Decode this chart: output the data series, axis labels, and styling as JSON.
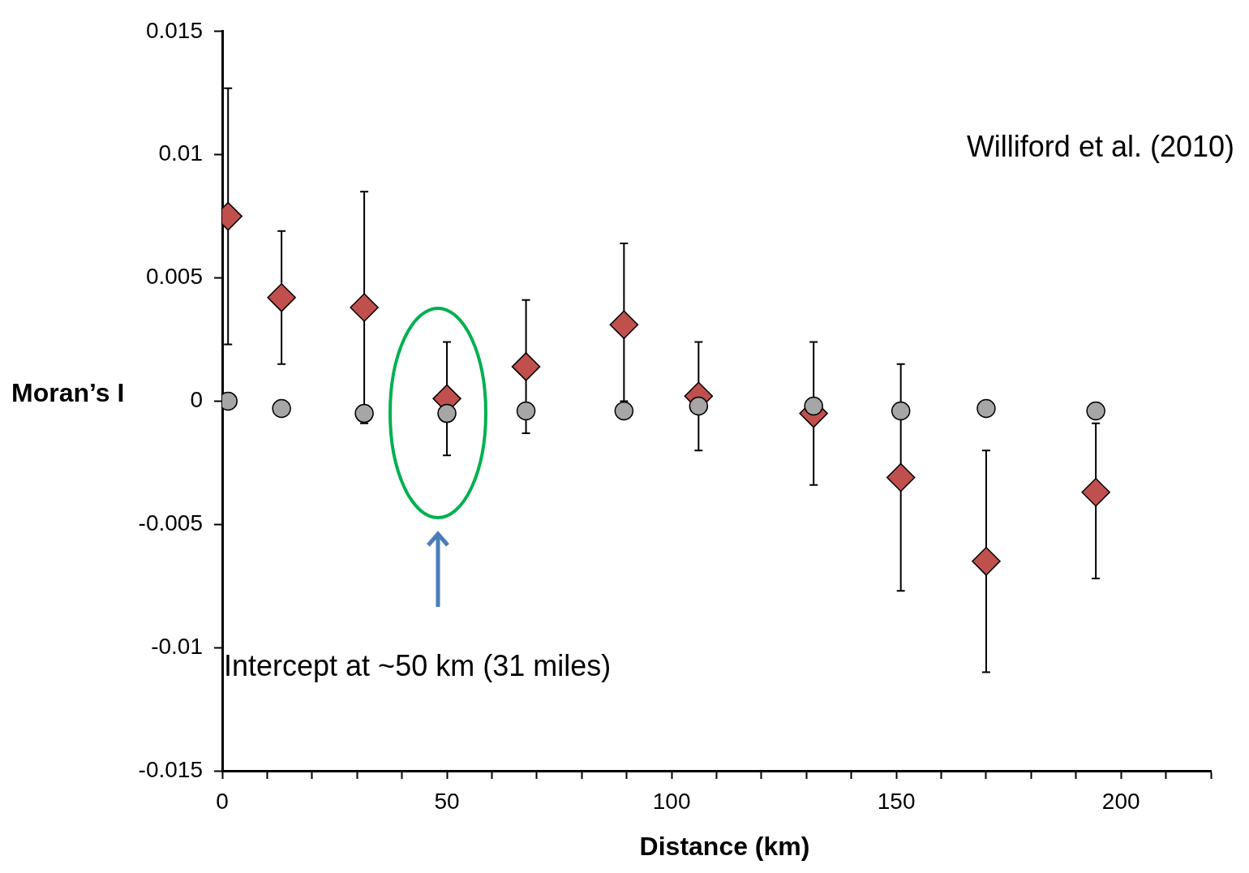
{
  "chart_data": {
    "type": "scatter",
    "xlabel": "Distance (km)",
    "ylabel": "Moran’s I",
    "annotations": [
      "Williford et al. (2010)",
      "Intercept at ~50 km (31 miles)"
    ],
    "xlim": [
      0,
      220
    ],
    "xticks": [
      0,
      {
        "value": 10,
        "label": null
      },
      {
        "value": 20,
        "label": null
      },
      {
        "value": 30,
        "label": null
      },
      {
        "value": 40,
        "label": null
      },
      50,
      {
        "value": 60,
        "label": null
      },
      {
        "value": 70,
        "label": null
      },
      {
        "value": 80,
        "label": null
      },
      {
        "value": 90,
        "label": null
      },
      100,
      {
        "value": 110,
        "label": null
      },
      {
        "value": 120,
        "label": null
      },
      {
        "value": 130,
        "label": null
      },
      {
        "value": 140,
        "label": null
      },
      150,
      {
        "value": 160,
        "label": null
      },
      {
        "value": 170,
        "label": null
      },
      {
        "value": 180,
        "label": null
      },
      {
        "value": 190,
        "label": null
      },
      200,
      {
        "value": 210,
        "label": null
      },
      {
        "value": 220,
        "label": null
      }
    ],
    "ylim": [
      -0.015,
      0.015
    ],
    "yticks": [
      -0.015,
      -0.01,
      -0.005,
      0,
      0.005,
      0.01,
      0.015
    ],
    "grid": false,
    "legend": false,
    "series": [
      {
        "color": "#c0504d",
        "marker": "diamond",
        "x": [
          1.3,
          13.2,
          31.6,
          50,
          67.6,
          89.4,
          106,
          131.6,
          151,
          170,
          194.4
        ],
        "values": [
          0.0075,
          0.0042,
          0.0038,
          0.0001,
          0.0014,
          0.0031,
          0.0002,
          -0.0005,
          -0.0031,
          -0.0065,
          -0.0037
        ],
        "errors": [
          [
            0.0023,
            0.0127
          ],
          [
            0.0015,
            0.0069
          ],
          [
            -0.0009,
            0.0085
          ],
          [
            -0.0022,
            0.0024
          ],
          [
            -0.0013,
            0.0041
          ],
          [
            0,
            0.0064
          ],
          [
            -0.002,
            0.0024
          ],
          [
            -0.0034,
            0.0024
          ],
          [
            -0.0077,
            0.0015
          ],
          [
            -0.011,
            -0.002
          ],
          [
            -0.0072,
            -0.0009
          ]
        ]
      },
      {
        "color": "#a6a6a6",
        "marker": "circle",
        "x": [
          1.3,
          13.2,
          31.6,
          50,
          67.6,
          89.4,
          106,
          131.6,
          151,
          170,
          194.4
        ],
        "values": [
          0,
          -0.0003,
          -0.0005,
          -0.0005,
          -0.0004,
          -0.0004,
          -0.0002,
          -0.0002,
          -0.0004,
          -0.0003,
          -0.0004
        ]
      }
    ]
  }
}
